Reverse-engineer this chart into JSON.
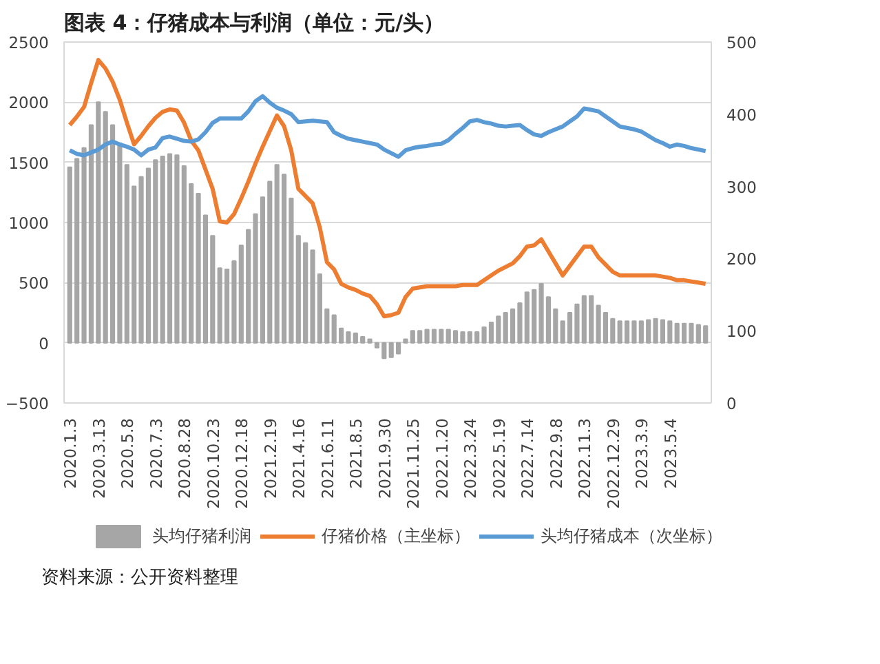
{
  "chart_data": {
    "type": "bar",
    "title": "图表 4：仔猪成本与利润（单位：元/头）",
    "categories": [
      "2020.1.3",
      null,
      null,
      null,
      "2020.3.13",
      null,
      null,
      null,
      "2020.5.8",
      null,
      null,
      null,
      "2020.7.3",
      null,
      null,
      null,
      "2020.8.28",
      null,
      null,
      null,
      "2020.10.23",
      null,
      null,
      null,
      "2020.12.18",
      null,
      null,
      null,
      "2021.2.19",
      null,
      null,
      null,
      "2021.4.16",
      null,
      null,
      null,
      "2021.6.11",
      null,
      null,
      null,
      "2021.8.5",
      null,
      null,
      null,
      "2021.9.30",
      null,
      null,
      null,
      "2021.11.25",
      null,
      null,
      null,
      "2022.1.20",
      null,
      null,
      null,
      "2022.3.24",
      null,
      null,
      null,
      "2022.5.19",
      null,
      null,
      null,
      "2022.7.14",
      null,
      null,
      null,
      "2022.9.8",
      null,
      null,
      null,
      "2022.11.3",
      null,
      null,
      null,
      "2022.12.29",
      null,
      null,
      null,
      "2023.3.9",
      null,
      null,
      null,
      "2023.5.4",
      null,
      null,
      null,
      null,
      null
    ],
    "series": [
      {
        "name": "头均仔猪利润",
        "color": "#a6a6a6",
        "values": [
          1460,
          1530,
          1620,
          1810,
          2000,
          1920,
          1810,
          1660,
          1480,
          1300,
          1380,
          1450,
          1520,
          1550,
          1570,
          1560,
          1470,
          1320,
          1240,
          1060,
          890,
          620,
          610,
          680,
          810,
          940,
          1070,
          1210,
          1340,
          1480,
          1400,
          1200,
          890,
          830,
          770,
          570,
          280,
          230,
          120,
          90,
          80,
          50,
          30,
          -40,
          -130,
          -120,
          -90,
          30,
          100,
          100,
          110,
          110,
          110,
          110,
          100,
          90,
          90,
          90,
          130,
          170,
          220,
          250,
          280,
          330,
          420,
          440,
          490,
          380,
          280,
          180,
          250,
          320,
          390,
          390,
          310,
          250,
          200,
          180,
          180,
          180,
          180,
          190,
          200,
          190,
          180,
          160,
          160,
          160,
          150,
          140
        ]
      },
      {
        "name": "仔猪价格（主坐标）",
        "type": "line",
        "color": "#ed7d31",
        "values": [
          1810,
          1880,
          1960,
          2160,
          2350,
          2280,
          2170,
          2020,
          1830,
          1650,
          1720,
          1800,
          1870,
          1920,
          1940,
          1930,
          1830,
          1680,
          1600,
          1440,
          1280,
          1010,
          1000,
          1070,
          1200,
          1340,
          1490,
          1630,
          1760,
          1890,
          1800,
          1600,
          1280,
          1220,
          1160,
          960,
          670,
          610,
          490,
          460,
          440,
          410,
          390,
          320,
          220,
          230,
          250,
          380,
          450,
          460,
          470,
          470,
          470,
          470,
          470,
          480,
          480,
          480,
          520,
          560,
          600,
          630,
          660,
          720,
          800,
          810,
          860,
          760,
          660,
          560,
          640,
          720,
          800,
          800,
          710,
          650,
          590,
          560,
          560,
          560,
          560,
          560,
          560,
          550,
          540,
          520,
          520,
          510,
          500,
          490
        ]
      },
      {
        "name": "头均仔猪成本（次坐标）",
        "type": "line",
        "axis": "y2",
        "color": "#5b9bd5",
        "values": [
          350,
          345,
          343,
          347,
          351,
          358,
          362,
          358,
          355,
          351,
          343,
          351,
          354,
          367,
          369,
          366,
          363,
          362,
          365,
          375,
          388,
          394,
          394,
          394,
          394,
          404,
          418,
          425,
          416,
          409,
          405,
          400,
          389,
          390,
          391,
          390,
          389,
          375,
          370,
          366,
          364,
          362,
          360,
          358,
          351,
          346,
          341,
          350,
          353,
          355,
          356,
          358,
          359,
          364,
          373,
          381,
          390,
          392,
          389,
          387,
          384,
          383,
          384,
          385,
          378,
          372,
          370,
          375,
          379,
          383,
          390,
          397,
          408,
          406,
          404,
          397,
          390,
          383,
          381,
          379,
          376,
          370,
          364,
          360,
          355,
          358,
          356,
          353,
          351,
          349
        ]
      }
    ],
    "ylim": [
      -500,
      2500
    ],
    "yticks": [
      -500,
      0,
      500,
      1000,
      1500,
      2000,
      2500
    ],
    "y2lim": [
      0,
      500
    ],
    "y2ticks": [
      0,
      100,
      200,
      300,
      400,
      500
    ],
    "grid": "y",
    "legend": "bottom",
    "annotations": [
      "资料来源：公开资料整理"
    ]
  }
}
